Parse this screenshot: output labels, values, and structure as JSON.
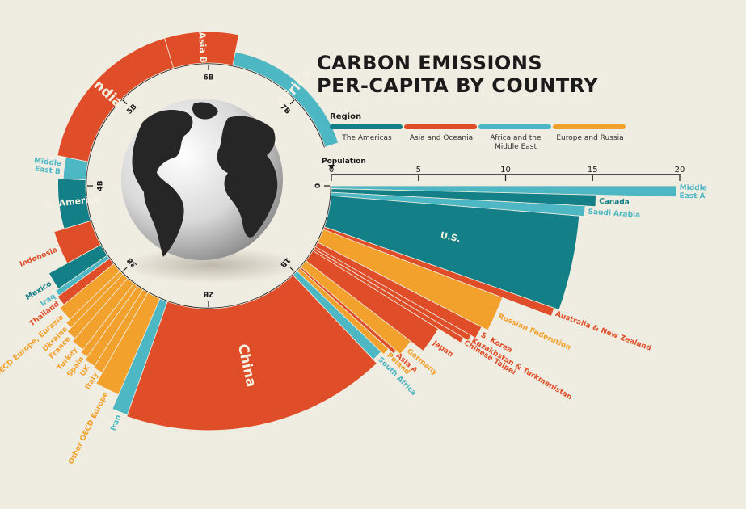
{
  "chart_data": {
    "type": "radial-bar",
    "title_lines": [
      "CARBON EMISSIONS",
      "PER-CAPITA BY COUNTRY"
    ],
    "legend": {
      "title": "Region",
      "items": [
        {
          "name": "The Americas",
          "color": "#137f86"
        },
        {
          "name": "Asia and Oceania",
          "color": "#e04e29"
        },
        {
          "name": "Africa and the Middle East",
          "color": "#4db7c4"
        },
        {
          "name": "Europe and Russia",
          "color": "#f2a12c"
        }
      ]
    },
    "value_axis": {
      "label": "Population",
      "ticks": [
        0,
        5,
        10,
        15,
        20
      ],
      "range": [
        0,
        20
      ]
    },
    "population_axis": {
      "ticks": [
        "0",
        "1B",
        "2B",
        "3B",
        "4B",
        "5B",
        "6B",
        "7B"
      ],
      "range": [
        0,
        7.6
      ]
    },
    "countries": [
      {
        "name": "Middle East A",
        "lines": [
          "Middle",
          "East A"
        ],
        "region": "Africa and the Middle East",
        "population": 0.03,
        "value": 19.8
      },
      {
        "name": "Canada",
        "region": "The Americas",
        "population": 0.038,
        "value": 15.2
      },
      {
        "name": "Saudi Arabia",
        "region": "Africa and the Middle East",
        "population": 0.035,
        "value": 14.6
      },
      {
        "name": "U.S.",
        "region": "The Americas",
        "population": 0.33,
        "value": 14.3,
        "big": true
      },
      {
        "name": "Australia & New Zealand",
        "region": "Asia and Oceania",
        "population": 0.03,
        "value": 14.0
      },
      {
        "name": "Russian Federation",
        "region": "Europe and Russia",
        "population": 0.145,
        "value": 11.0
      },
      {
        "name": "S. Korea",
        "region": "Asia and Oceania",
        "population": 0.052,
        "value": 10.6
      },
      {
        "name": "Kazakhstan & Turkmenistan",
        "region": "Asia and Oceania",
        "population": 0.025,
        "value": 10.3
      },
      {
        "name": "Chinese Taipei",
        "region": "Asia and Oceania",
        "population": 0.024,
        "value": 10.0
      },
      {
        "name": "Japan",
        "region": "Asia and Oceania",
        "population": 0.126,
        "value": 8.5
      },
      {
        "name": "Germany",
        "region": "Europe and Russia",
        "population": 0.083,
        "value": 7.6
      },
      {
        "name": "Asia A",
        "region": "Asia and Oceania",
        "population": 0.02,
        "value": 7.3
      },
      {
        "name": "Poland",
        "region": "Europe and Russia",
        "population": 0.038,
        "value": 6.9
      },
      {
        "name": "South Africa",
        "region": "Africa and the Middle East",
        "population": 0.058,
        "value": 6.7
      },
      {
        "name": "China",
        "region": "Asia and Oceania",
        "population": 1.4,
        "value": 7.0,
        "big": true
      },
      {
        "name": "Iran",
        "region": "Africa and the Middle East",
        "population": 0.084,
        "value": 6.9
      },
      {
        "name": "Other OECD Europe",
        "region": "Europe and Russia",
        "population": 0.14,
        "value": 6.0
      },
      {
        "name": "Italy",
        "region": "Europe and Russia",
        "population": 0.06,
        "value": 5.3
      },
      {
        "name": "UK",
        "region": "Europe and Russia",
        "population": 0.067,
        "value": 5.2
      },
      {
        "name": "Spain",
        "region": "Europe and Russia",
        "population": 0.047,
        "value": 5.0
      },
      {
        "name": "Turkey",
        "region": "Europe and Russia",
        "population": 0.083,
        "value": 4.8
      },
      {
        "name": "France",
        "region": "Europe and Russia",
        "population": 0.065,
        "value": 4.6
      },
      {
        "name": "Ukraine",
        "region": "Europe and Russia",
        "population": 0.044,
        "value": 4.3
      },
      {
        "name": "Other Non OECD Europe, Eurasia",
        "region": "Europe and Russia",
        "population": 0.1,
        "value": 4.0
      },
      {
        "name": "Thailand",
        "region": "Asia and Oceania",
        "population": 0.07,
        "value": 3.7
      },
      {
        "name": "Iraq",
        "region": "Africa and the Middle East",
        "population": 0.04,
        "value": 3.6
      },
      {
        "name": "Mexico",
        "region": "The Americas",
        "population": 0.128,
        "value": 3.4
      },
      {
        "name": "Indonesia",
        "region": "Asia and Oceania",
        "population": 0.27,
        "value": 2.2
      },
      {
        "name": "S. America",
        "region": "The Americas",
        "population": 0.43,
        "value": 1.6,
        "big": true
      },
      {
        "name": "Middle East B",
        "lines": [
          "Middle",
          "East B"
        ],
        "region": "Africa and the Middle East",
        "population": 0.19,
        "value": 1.3
      },
      {
        "name": "India",
        "region": "Asia and Oceania",
        "population": 1.38,
        "value": 1.8,
        "big": true
      },
      {
        "name": "Asia B",
        "region": "Asia and Oceania",
        "population": 0.62,
        "value": 1.8,
        "big": true
      },
      {
        "name": "Africa",
        "region": "Africa and the Middle East",
        "population": 1.34,
        "value": 0.8,
        "big": true
      }
    ]
  }
}
